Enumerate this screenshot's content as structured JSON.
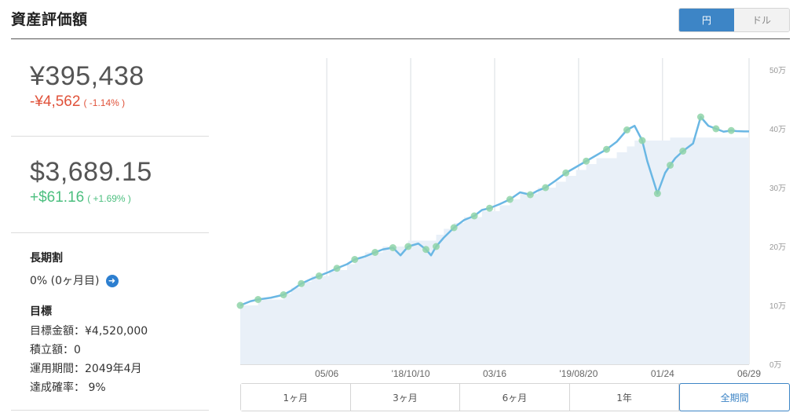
{
  "header": {
    "title": "資産評価額"
  },
  "currency_toggle": {
    "yen_label": "円",
    "dollar_label": "ドル",
    "selected": "円"
  },
  "yen_summary": {
    "value": "¥395,438",
    "change": "-¥4,562",
    "change_pct": "( -1.14% )"
  },
  "usd_summary": {
    "value": "$3,689.15",
    "change": "+$61.16",
    "change_pct": "( +1.69% )"
  },
  "long_term": {
    "label": "長期割",
    "value": "0% (0ヶ月目)"
  },
  "goal": {
    "label": "目標",
    "items": [
      "目標金額：¥4,520,000",
      "積立額：0",
      "運用期間：2049年4月",
      "達成確率： 9%"
    ]
  },
  "ranges": [
    {
      "label": "1ヶ月",
      "active": false
    },
    {
      "label": "3ヶ月",
      "active": false
    },
    {
      "label": "6ヶ月",
      "active": false
    },
    {
      "label": "1年",
      "active": false
    },
    {
      "label": "全期間",
      "active": true
    }
  ],
  "colors": {
    "accent": "#3d85c6",
    "negative": "#e0523a",
    "positive": "#4cbf7f",
    "line": "#6ab7e4",
    "area": "#e9f0f8",
    "marker": "#8fd3a8"
  },
  "chart_data": {
    "type": "line",
    "x_tick_labels": [
      "05/06",
      "'18/10/10",
      "03/16",
      "'19/08/20",
      "01/24",
      "06/29"
    ],
    "y_tick_labels": [
      "0万",
      "10万",
      "20万",
      "30万",
      "40万",
      "50万"
    ],
    "ylim": [
      0,
      520000
    ],
    "x": [
      0,
      0.02,
      0.035,
      0.06,
      0.085,
      0.1,
      0.12,
      0.14,
      0.155,
      0.175,
      0.19,
      0.21,
      0.225,
      0.245,
      0.265,
      0.28,
      0.3,
      0.315,
      0.33,
      0.35,
      0.365,
      0.375,
      0.385,
      0.4,
      0.42,
      0.44,
      0.46,
      0.475,
      0.49,
      0.51,
      0.53,
      0.55,
      0.57,
      0.585,
      0.6,
      0.62,
      0.64,
      0.66,
      0.68,
      0.7,
      0.72,
      0.74,
      0.76,
      0.775,
      0.79,
      0.8,
      0.82,
      0.835,
      0.845,
      0.855,
      0.87,
      0.89,
      0.905,
      0.92,
      0.935,
      0.95,
      0.965,
      0.975,
      0.99,
      1
    ],
    "values": [
      100000,
      107000,
      110000,
      113000,
      118000,
      125000,
      137000,
      145000,
      150000,
      157000,
      163000,
      170000,
      178000,
      183000,
      190000,
      195000,
      198000,
      185000,
      200000,
      205000,
      195000,
      185000,
      200000,
      215000,
      232000,
      245000,
      252000,
      262000,
      265000,
      272000,
      280000,
      292000,
      288000,
      295000,
      300000,
      312000,
      325000,
      335000,
      345000,
      355000,
      365000,
      378000,
      398000,
      405000,
      380000,
      345000,
      290000,
      325000,
      338000,
      350000,
      362000,
      375000,
      420000,
      405000,
      400000,
      395000,
      397000,
      396000,
      395500,
      395438
    ],
    "invested_steps": [
      100000,
      100000,
      110000,
      110000,
      120000,
      130000,
      140000,
      150000,
      150000,
      160000,
      160000,
      170000,
      180000,
      190000,
      190000,
      200000,
      200000,
      200000,
      210000,
      210000,
      210000,
      210000,
      220000,
      230000,
      240000,
      250000,
      250000,
      260000,
      260000,
      270000,
      280000,
      290000,
      290000,
      300000,
      300000,
      310000,
      320000,
      330000,
      340000,
      350000,
      350000,
      360000,
      370000,
      380000,
      380000,
      380000,
      380000,
      380000,
      385000,
      385000,
      385000,
      385000,
      385000,
      385000,
      385000,
      385000,
      385000,
      385000,
      385000,
      385000
    ]
  }
}
